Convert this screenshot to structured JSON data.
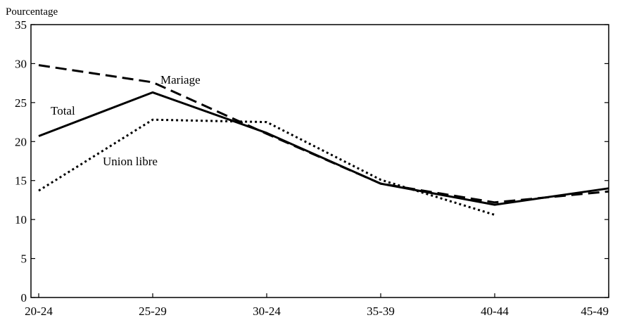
{
  "chart_data": {
    "type": "line",
    "title": "",
    "xlabel": "",
    "ylabel": "Pourcentage",
    "categories": [
      "20-24",
      "25-29",
      "30-24",
      "35-39",
      "40-44",
      "45-49"
    ],
    "ylim": [
      0,
      35
    ],
    "yticks": [
      "0",
      "5",
      "10",
      "15",
      "20",
      "25",
      "30",
      "35"
    ],
    "grid": false,
    "legend": "none",
    "series": [
      {
        "name": "Mariage",
        "style": "dashed",
        "color": "#000000",
        "values": [
          29.8,
          27.6,
          21.0,
          14.6,
          12.2,
          13.6
        ]
      },
      {
        "name": "Total",
        "style": "solid",
        "color": "#000000",
        "values": [
          20.7,
          26.3,
          21.1,
          14.6,
          11.9,
          14.0
        ]
      },
      {
        "name": "Union libre",
        "style": "dotted",
        "color": "#000000",
        "values": [
          13.7,
          22.8,
          22.5,
          15.1,
          10.6,
          null
        ]
      }
    ]
  }
}
